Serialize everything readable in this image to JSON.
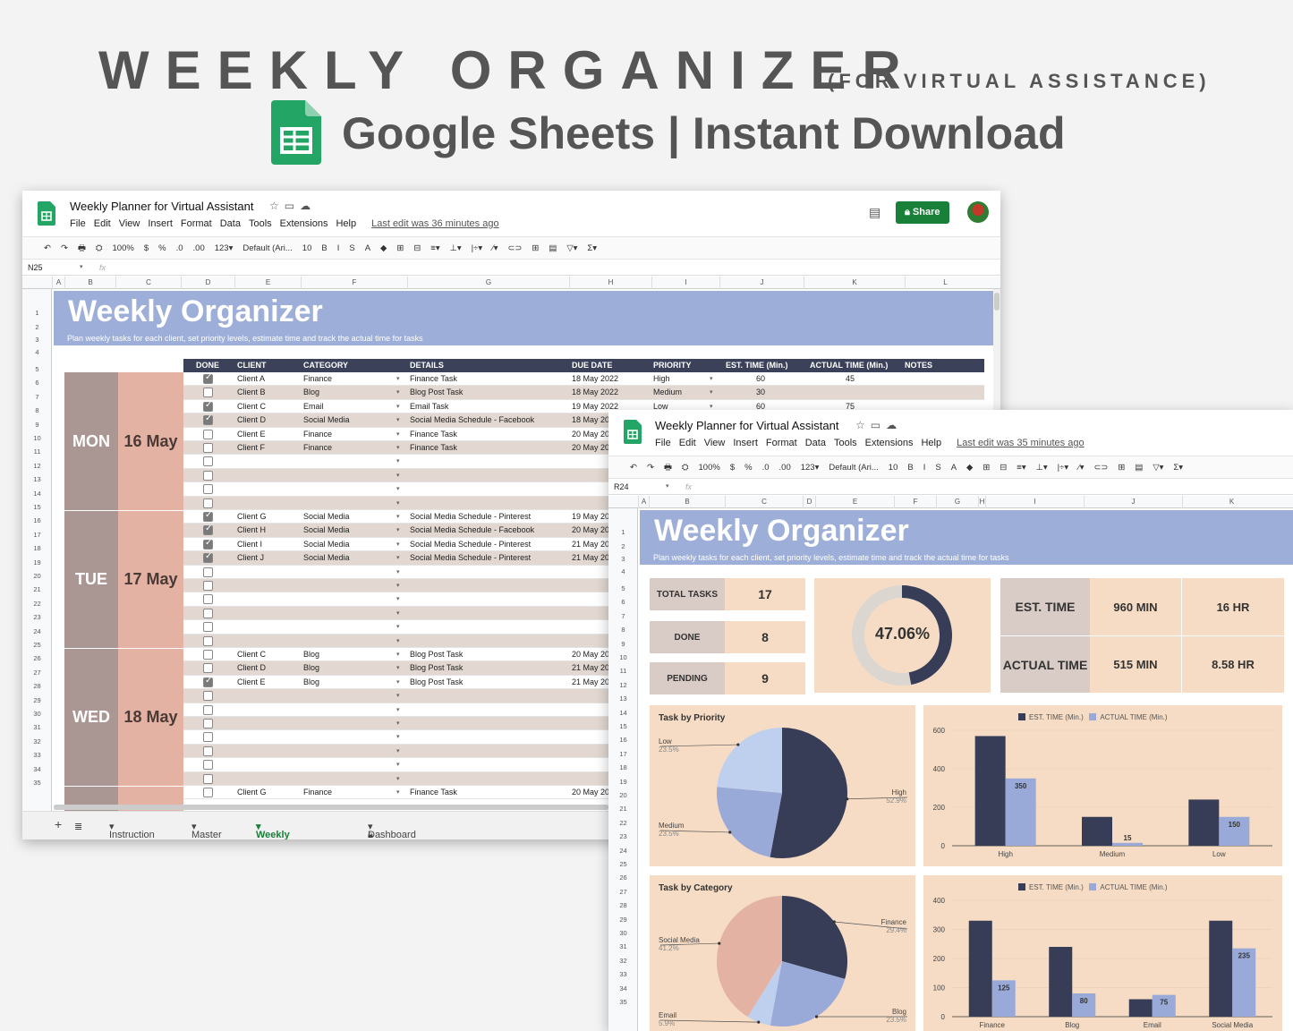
{
  "hero": {
    "title": "WEEKLY ORGANIZER",
    "subtitle": "(FOR VIRTUAL ASSISTANCE)",
    "line2": "Google Sheets | Instant Download"
  },
  "doc": {
    "title": "Weekly Planner for Virtual Assistant",
    "menus": [
      "File",
      "Edit",
      "View",
      "Insert",
      "Format",
      "Data",
      "Tools",
      "Extensions",
      "Help"
    ],
    "last_edit": "Last edit was 36 minutes ago",
    "share": "Share"
  },
  "win1": {
    "name_box": "N25",
    "zoom": "100%",
    "font": "Default (Ari...",
    "size": "10",
    "last_edit": "Last edit was 36 minutes ago"
  },
  "win2": {
    "name_box": "R24",
    "zoom": "100%",
    "font": "Default (Ari...",
    "size": "10",
    "last_edit": "Last edit was 35 minutes ago"
  },
  "toolbar_items": [
    "↶",
    "↷",
    "🖶",
    "⛭",
    "{zoom}",
    "$",
    "%",
    ".0",
    ".00",
    "123▾",
    "{font}",
    "{size}",
    "B",
    "I",
    "S",
    "A",
    "◆",
    "⊞",
    "⊟",
    "≡▾",
    "⊥▾",
    "|÷▾",
    "⁄▾",
    "⊂⊃",
    "⊞",
    "▤",
    "▽▾",
    "Σ▾"
  ],
  "columns1": [
    "A",
    "B",
    "C",
    "D",
    "E",
    "F",
    "G",
    "H",
    "I",
    "J",
    "K",
    "L"
  ],
  "columns2": [
    "A",
    "B",
    "C",
    "D",
    "E",
    "F",
    "G",
    "H",
    "I",
    "J",
    "K"
  ],
  "banner": {
    "title": "Weekly Organizer",
    "subtitle": "Plan weekly tasks for each client, set priority levels, estimate time and track the actual time for tasks"
  },
  "table_headers": [
    "DONE",
    "CLIENT",
    "CATEGORY",
    "DETAILS",
    "DUE DATE",
    "PRIORITY",
    "EST. TIME (Min.)",
    "ACTUAL TIME (Min.)",
    "NOTES"
  ],
  "days": [
    {
      "day": "MON",
      "date": "16 May"
    },
    {
      "day": "TUE",
      "date": "17 May"
    },
    {
      "day": "WED",
      "date": "18 May"
    }
  ],
  "rows": [
    {
      "done": true,
      "client": "Client A",
      "category": "Finance",
      "details": "Finance Task",
      "due": "18 May 2022",
      "priority": "High",
      "est": "60",
      "actual": "45"
    },
    {
      "done": false,
      "client": "Client B",
      "category": "Blog",
      "details": "Blog Post Task",
      "due": "18 May 2022",
      "priority": "Medium",
      "est": "30",
      "actual": ""
    },
    {
      "done": true,
      "client": "Client C",
      "category": "Email",
      "details": "Email Task",
      "due": "19 May 2022",
      "priority": "Low",
      "est": "60",
      "actual": "75"
    },
    {
      "done": true,
      "client": "Client D",
      "category": "Social Media",
      "details": "Social Media Schedule - Facebook",
      "due": "18 May 20",
      "priority": "",
      "est": "",
      "actual": ""
    },
    {
      "done": false,
      "client": "Client E",
      "category": "Finance",
      "details": "Finance Task",
      "due": "20 May 20",
      "priority": "",
      "est": "",
      "actual": ""
    },
    {
      "done": false,
      "client": "Client F",
      "category": "Finance",
      "details": "Finance Task",
      "due": "20 May 20",
      "priority": "",
      "est": "",
      "actual": ""
    },
    {
      "done": false,
      "client": "",
      "category": "",
      "details": "",
      "due": "",
      "priority": "",
      "est": "",
      "actual": ""
    },
    {
      "done": false,
      "client": "",
      "category": "",
      "details": "",
      "due": "",
      "priority": "",
      "est": "",
      "actual": ""
    },
    {
      "done": false,
      "client": "",
      "category": "",
      "details": "",
      "due": "",
      "priority": "",
      "est": "",
      "actual": ""
    },
    {
      "done": false,
      "client": "",
      "category": "",
      "details": "",
      "due": "",
      "priority": "",
      "est": "",
      "actual": ""
    },
    {
      "done": true,
      "client": "Client G",
      "category": "Social Media",
      "details": "Social Media Schedule - Pinterest",
      "due": "19 May 20",
      "priority": "",
      "est": "",
      "actual": ""
    },
    {
      "done": true,
      "client": "Client H",
      "category": "Social Media",
      "details": "Social Media Schedule - Facebook",
      "due": "20 May 20",
      "priority": "",
      "est": "",
      "actual": ""
    },
    {
      "done": true,
      "client": "Client I",
      "category": "Social Media",
      "details": "Social Media Schedule - Pinterest",
      "due": "21 May 20",
      "priority": "",
      "est": "",
      "actual": ""
    },
    {
      "done": true,
      "client": "Client J",
      "category": "Social Media",
      "details": "Social Media Schedule - Pinterest",
      "due": "21 May 20",
      "priority": "",
      "est": "",
      "actual": ""
    },
    {
      "done": false,
      "client": "",
      "category": "",
      "details": "",
      "due": "",
      "priority": "",
      "est": "",
      "actual": ""
    },
    {
      "done": false,
      "client": "",
      "category": "",
      "details": "",
      "due": "",
      "priority": "",
      "est": "",
      "actual": ""
    },
    {
      "done": false,
      "client": "",
      "category": "",
      "details": "",
      "due": "",
      "priority": "",
      "est": "",
      "actual": ""
    },
    {
      "done": false,
      "client": "",
      "category": "",
      "details": "",
      "due": "",
      "priority": "",
      "est": "",
      "actual": ""
    },
    {
      "done": false,
      "client": "",
      "category": "",
      "details": "",
      "due": "",
      "priority": "",
      "est": "",
      "actual": ""
    },
    {
      "done": false,
      "client": "",
      "category": "",
      "details": "",
      "due": "",
      "priority": "",
      "est": "",
      "actual": ""
    },
    {
      "done": false,
      "client": "Client C",
      "category": "Blog",
      "details": "Blog Post Task",
      "due": "20 May 20",
      "priority": "",
      "est": "",
      "actual": ""
    },
    {
      "done": false,
      "client": "Client D",
      "category": "Blog",
      "details": "Blog Post Task",
      "due": "21 May 20",
      "priority": "",
      "est": "",
      "actual": ""
    },
    {
      "done": true,
      "client": "Client E",
      "category": "Blog",
      "details": "Blog Post Task",
      "due": "21 May 20",
      "priority": "",
      "est": "",
      "actual": ""
    },
    {
      "done": false,
      "client": "",
      "category": "",
      "details": "",
      "due": "",
      "priority": "",
      "est": "",
      "actual": ""
    },
    {
      "done": false,
      "client": "",
      "category": "",
      "details": "",
      "due": "",
      "priority": "",
      "est": "",
      "actual": ""
    },
    {
      "done": false,
      "client": "",
      "category": "",
      "details": "",
      "due": "",
      "priority": "",
      "est": "",
      "actual": ""
    },
    {
      "done": false,
      "client": "",
      "category": "",
      "details": "",
      "due": "",
      "priority": "",
      "est": "",
      "actual": ""
    },
    {
      "done": false,
      "client": "",
      "category": "",
      "details": "",
      "due": "",
      "priority": "",
      "est": "",
      "actual": ""
    },
    {
      "done": false,
      "client": "",
      "category": "",
      "details": "",
      "due": "",
      "priority": "",
      "est": "",
      "actual": ""
    },
    {
      "done": false,
      "client": "",
      "category": "",
      "details": "",
      "due": "",
      "priority": "",
      "est": "",
      "actual": ""
    },
    {
      "done": false,
      "client": "Client G",
      "category": "Finance",
      "details": "Finance Task",
      "due": "20 May 20",
      "priority": "",
      "est": "",
      "actual": ""
    }
  ],
  "sheet_tabs": [
    "Instruction",
    "Master",
    "Weekly Organizer",
    "Dashboard"
  ],
  "dashboard": {
    "total_tasks_label": "TOTAL TASKS",
    "total_tasks": "17",
    "done_label": "DONE",
    "done": "8",
    "pending_label": "PENDING",
    "pending": "9",
    "percent": "47.06%",
    "percent_value": 0.4706,
    "est_label": "EST. TIME",
    "est_min": "960 MIN",
    "est_hr": "16 HR",
    "actual_label": "ACTUAL TIME",
    "actual_min": "515 MIN",
    "actual_hr": "8.58 HR"
  },
  "chart_data": [
    {
      "type": "pie",
      "title": "Task by Priority",
      "labels": [
        "High",
        "Medium",
        "Low"
      ],
      "values": [
        52.9,
        23.5,
        23.5
      ],
      "value_labels": [
        "52.9%",
        "23.5%",
        "23.5%"
      ],
      "colors": [
        "#383d57",
        "#9aaad8",
        "#bfd0ef"
      ]
    },
    {
      "type": "bar",
      "categories": [
        "High",
        "Medium",
        "Low"
      ],
      "series": [
        {
          "name": "EST. TIME (Min.)",
          "values": [
            570,
            150,
            240
          ],
          "labels": [
            "",
            "",
            ""
          ]
        },
        {
          "name": "ACTUAL TIME (Min.)",
          "values": [
            350,
            15,
            150
          ],
          "labels": [
            "350",
            "15",
            "150"
          ]
        }
      ],
      "ylim": [
        0,
        600
      ],
      "yticks": [
        "0",
        "200",
        "400",
        "600"
      ],
      "colors": [
        "#383d57",
        "#9aaad8"
      ]
    },
    {
      "type": "pie",
      "title": "Task by Category",
      "labels": [
        "Finance",
        "Blog",
        "Email",
        "Social Media"
      ],
      "values": [
        29.4,
        23.5,
        5.9,
        41.2
      ],
      "value_labels": [
        "29.4%",
        "23.5%",
        "5.9%",
        "41.2%"
      ],
      "colors": [
        "#383d57",
        "#9aaad8",
        "#bfd0ef",
        "#e3b2a3"
      ]
    },
    {
      "type": "bar",
      "categories": [
        "Finance",
        "Blog",
        "Email",
        "Social Media"
      ],
      "series": [
        {
          "name": "EST. TIME (Min.)",
          "values": [
            330,
            240,
            60,
            330
          ],
          "labels": [
            "",
            "",
            "",
            ""
          ]
        },
        {
          "name": "ACTUAL TIME (Min.)",
          "values": [
            125,
            80,
            75,
            235
          ],
          "labels": [
            "125",
            "80",
            "75",
            "235"
          ]
        }
      ],
      "ylim": [
        0,
        400
      ],
      "yticks": [
        "0",
        "100",
        "200",
        "300",
        "400"
      ],
      "colors": [
        "#383d57",
        "#9aaad8"
      ]
    }
  ]
}
